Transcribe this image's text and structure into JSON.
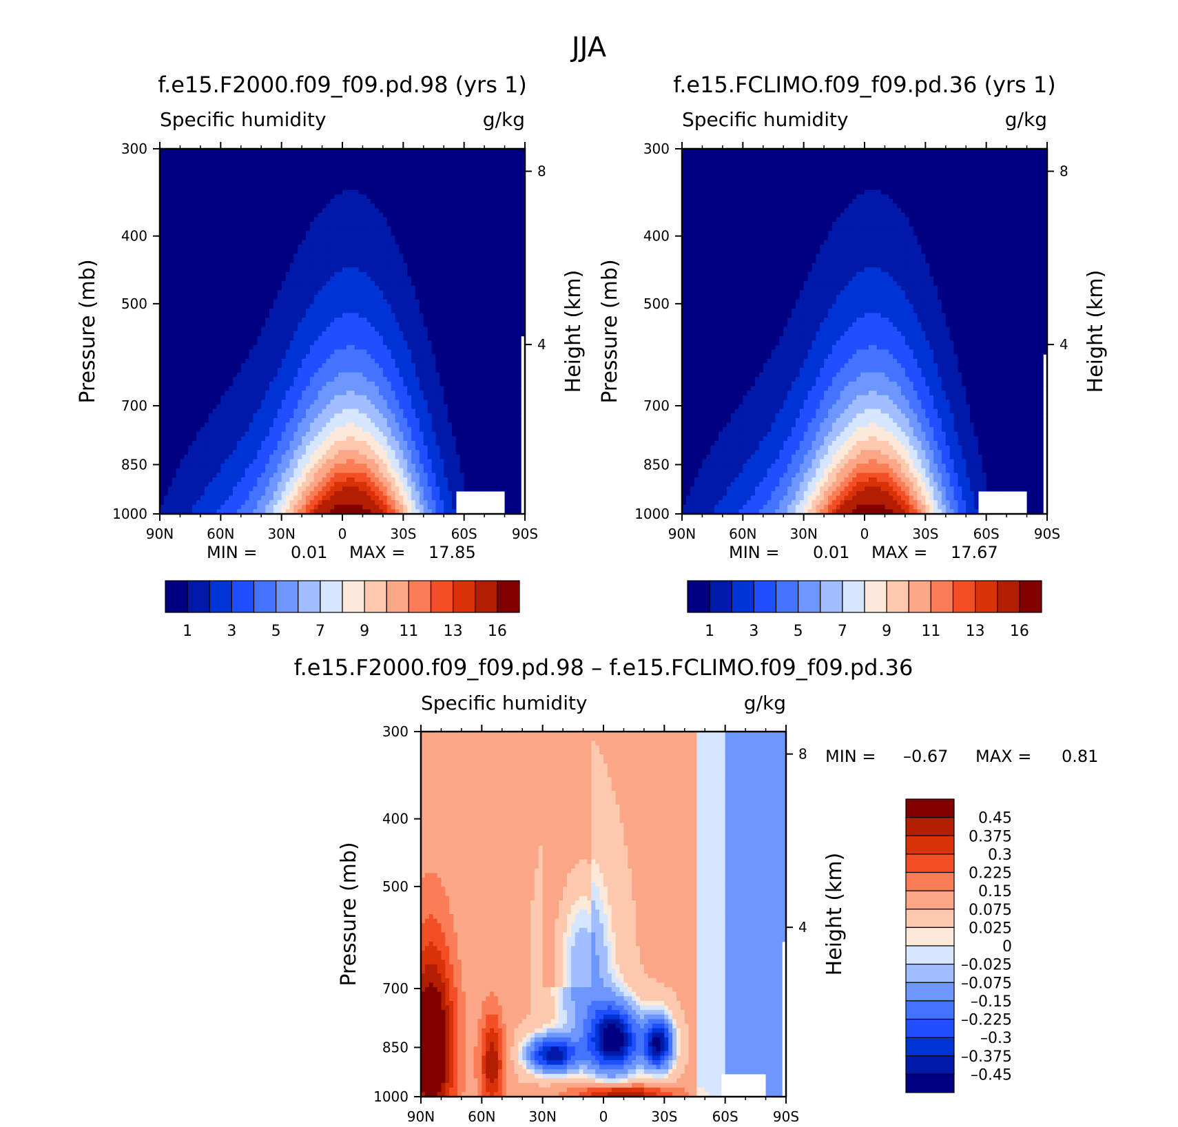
{
  "figure_title": "JJA",
  "chart_data": [
    {
      "type": "contour",
      "title": "f.e15.F2000.f09_f09.pd.98 (yrs  1)",
      "left_label": "Specific humidity",
      "right_label": "g/kg",
      "xlabel": "",
      "ylabel": "Pressure (mb)",
      "y2label": "Height (km)",
      "x_ticks": [
        "90N",
        "60N",
        "30N",
        "0",
        "30S",
        "60S",
        "90S"
      ],
      "y_ticks": [
        "300",
        "400",
        "500",
        "700",
        "850",
        "1000"
      ],
      "y_tick_values": [
        300,
        400,
        500,
        700,
        850,
        1000
      ],
      "y2_ticks": [
        "8",
        "4"
      ],
      "y2_tick_values": [
        8,
        4
      ],
      "ylim": [
        1000,
        300
      ],
      "xlim": [
        90,
        -90
      ],
      "min_label": "MIN =",
      "min_value": "0.01",
      "max_label": "MAX =",
      "max_value": "17.85",
      "colorbar_labels": [
        "1",
        "3",
        "5",
        "7",
        "9",
        "11",
        "13",
        "16"
      ],
      "colorbar_colors": [
        "#000080",
        "#0019a8",
        "#0033d6",
        "#1f4fff",
        "#4474ff",
        "#6d97ff",
        "#a1beff",
        "#d6e6ff",
        "#fde9d9",
        "#fcc8ae",
        "#fca688",
        "#fa7d55",
        "#f24f26",
        "#d93209",
        "#b31e03",
        "#800000"
      ],
      "peak_level": 16,
      "peak_lat": -5
    },
    {
      "type": "contour",
      "title": "f.e15.FCLIMO.f09_f09.pd.36 (yrs  1)",
      "left_label": "Specific humidity",
      "right_label": "g/kg",
      "xlabel": "",
      "ylabel": "Pressure (mb)",
      "y2label": "Height (km)",
      "x_ticks": [
        "90N",
        "60N",
        "30N",
        "0",
        "30S",
        "60S",
        "90S"
      ],
      "y_ticks": [
        "300",
        "400",
        "500",
        "700",
        "850",
        "1000"
      ],
      "y_tick_values": [
        300,
        400,
        500,
        700,
        850,
        1000
      ],
      "y2_ticks": [
        "8",
        "4"
      ],
      "y2_tick_values": [
        8,
        4
      ],
      "ylim": [
        1000,
        300
      ],
      "xlim": [
        90,
        -90
      ],
      "min_label": "MIN =",
      "min_value": "0.01",
      "max_label": "MAX =",
      "max_value": "17.67",
      "colorbar_labels": [
        "1",
        "3",
        "5",
        "7",
        "9",
        "11",
        "13",
        "16"
      ],
      "colorbar_colors": [
        "#000080",
        "#0019a8",
        "#0033d6",
        "#1f4fff",
        "#4474ff",
        "#6d97ff",
        "#a1beff",
        "#d6e6ff",
        "#fde9d9",
        "#fcc8ae",
        "#fca688",
        "#fa7d55",
        "#f24f26",
        "#d93209",
        "#b31e03",
        "#800000"
      ],
      "peak_level": 16,
      "peak_lat": -5
    },
    {
      "type": "contour",
      "title": "f.e15.F2000.f09_f09.pd.98 – f.e15.FCLIMO.f09_f09.pd.36",
      "left_label": "Specific humidity",
      "right_label": "g/kg",
      "xlabel": "",
      "ylabel": "Pressure (mb)",
      "y2label": "Height (km)",
      "x_ticks": [
        "90N",
        "60N",
        "30N",
        "0",
        "30S",
        "60S",
        "90S"
      ],
      "y_ticks": [
        "300",
        "400",
        "500",
        "700",
        "850",
        "1000"
      ],
      "y_tick_values": [
        300,
        400,
        500,
        700,
        850,
        1000
      ],
      "y2_ticks": [
        "8",
        "4"
      ],
      "y2_tick_values": [
        8,
        4
      ],
      "ylim": [
        1000,
        300
      ],
      "xlim": [
        90,
        -90
      ],
      "min_label": "MIN =",
      "min_value": "–0.67",
      "max_label": "MAX =",
      "max_value": "0.81",
      "colorbar_labels": [
        "0.45",
        "0.375",
        "0.3",
        "0.225",
        "0.15",
        "0.075",
        "0.025",
        "0",
        "–0.025",
        "–0.075",
        "–0.15",
        "–0.225",
        "–0.3",
        "–0.375",
        "–0.45"
      ],
      "colorbar_colors": [
        "#800000",
        "#b31e03",
        "#d93209",
        "#f24f26",
        "#fa7d55",
        "#fca688",
        "#fcc8ae",
        "#fde9d9",
        "#d6e6ff",
        "#a1beff",
        "#6d97ff",
        "#4474ff",
        "#1f4fff",
        "#0033d6",
        "#0019a8",
        "#000080"
      ]
    }
  ]
}
